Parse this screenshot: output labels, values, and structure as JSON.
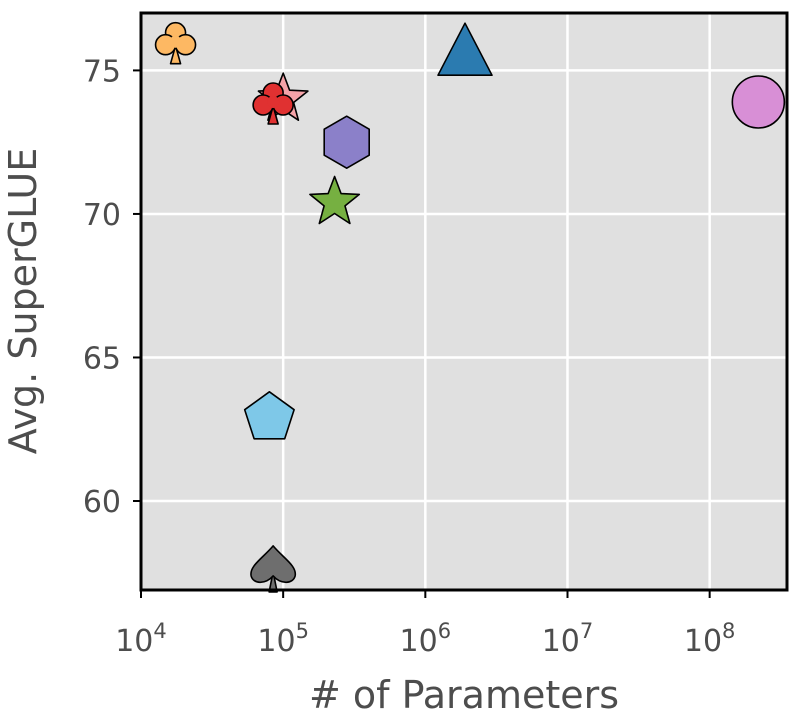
{
  "chart_data": {
    "type": "scatter",
    "title": "",
    "xlabel": "# of Parameters",
    "ylabel": "Avg. SuperGLUE",
    "x_scale": "log",
    "x_ticks": [
      {
        "value": 10000,
        "base": "10",
        "exp": "4"
      },
      {
        "value": 100000,
        "base": "10",
        "exp": "5"
      },
      {
        "value": 1000000,
        "base": "10",
        "exp": "6"
      },
      {
        "value": 10000000,
        "base": "10",
        "exp": "7"
      },
      {
        "value": 100000000,
        "base": "10",
        "exp": "8"
      }
    ],
    "y_ticks": [
      {
        "value": 60,
        "label": "60"
      },
      {
        "value": 65,
        "label": "65"
      },
      {
        "value": 70,
        "label": "70"
      },
      {
        "value": 75,
        "label": "75"
      }
    ],
    "xlim": [
      10000,
      350000000
    ],
    "ylim": [
      56.9,
      77.0
    ],
    "grid": true,
    "background": "#e0e0e0",
    "points": [
      {
        "x": 17500,
        "y": 76.0,
        "marker": "club",
        "color": "#fdb863"
      },
      {
        "x": 100000,
        "y": 74.0,
        "marker": "star",
        "color": "#f4a3a8"
      },
      {
        "x": 85000,
        "y": 73.9,
        "marker": "club",
        "color": "#e03131"
      },
      {
        "x": 280000,
        "y": 72.5,
        "marker": "hexagon",
        "color": "#8b80c9"
      },
      {
        "x": 230000,
        "y": 70.4,
        "marker": "star",
        "color": "#76b041"
      },
      {
        "x": 1900000,
        "y": 75.6,
        "marker": "triangle",
        "color": "#2b7bb0"
      },
      {
        "x": 220000000,
        "y": 73.9,
        "marker": "circle",
        "color": "#d88fd6"
      },
      {
        "x": 80000,
        "y": 62.9,
        "marker": "pentagon",
        "color": "#7ec8e8"
      },
      {
        "x": 85000,
        "y": 57.6,
        "marker": "spade",
        "color": "#6e6e6e"
      }
    ]
  }
}
